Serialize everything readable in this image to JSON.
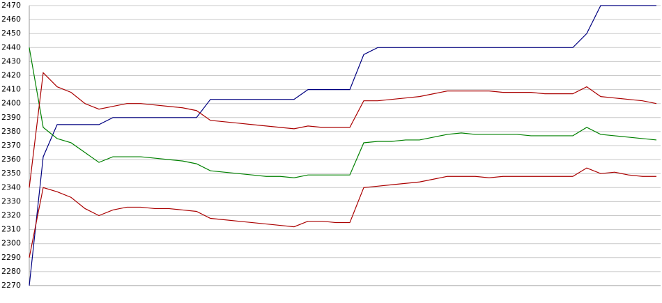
{
  "chart_data": {
    "type": "line",
    "categories": [
      null,
      null,
      null,
      null,
      null,
      null,
      null,
      null,
      null,
      null,
      null,
      null,
      null,
      null,
      null,
      null,
      null,
      null,
      null,
      null,
      null,
      null,
      null,
      null,
      null,
      null,
      null,
      null,
      null,
      null,
      null,
      null,
      null,
      null,
      null,
      null,
      null,
      null,
      null,
      null,
      null,
      null,
      null,
      null,
      null,
      null
    ],
    "series": [
      {
        "color": "#000080",
        "values": [
          2270,
          2362,
          2385,
          2385,
          2385,
          2385,
          2390,
          2390,
          2390,
          2390,
          2390,
          2390,
          2390,
          2403,
          2403,
          2403,
          2403,
          2403,
          2403,
          2403,
          2410,
          2410,
          2410,
          2410,
          2435,
          2440,
          2440,
          2440,
          2440,
          2440,
          2440,
          2440,
          2440,
          2440,
          2440,
          2440,
          2440,
          2440,
          2440,
          2440,
          2450,
          2470,
          2470,
          2470,
          2470,
          2470
        ]
      },
      {
        "color": "#008000",
        "values": [
          2440,
          2383,
          2375,
          2372,
          2365,
          2358,
          2362,
          2362,
          2362,
          2361,
          2360,
          2359,
          2357,
          2352,
          2351,
          2350,
          2349,
          2348,
          2348,
          2347,
          2349,
          2349,
          2349,
          2349,
          2372,
          2373,
          2373,
          2374,
          2374,
          2376,
          2378,
          2379,
          2378,
          2378,
          2378,
          2378,
          2377,
          2377,
          2377,
          2377,
          2383,
          2378,
          2377,
          2376,
          2375,
          2374
        ]
      },
      {
        "color": "#aa0000",
        "values": [
          2340,
          2422,
          2412,
          2408,
          2400,
          2396,
          2398,
          2400,
          2400,
          2399,
          2398,
          2397,
          2395,
          2388,
          2387,
          2386,
          2385,
          2384,
          2383,
          2382,
          2384,
          2383,
          2383,
          2383,
          2402,
          2402,
          2403,
          2404,
          2405,
          2407,
          2409,
          2409,
          2409,
          2409,
          2408,
          2408,
          2408,
          2407,
          2407,
          2407,
          2412,
          2405,
          2404,
          2403,
          2402,
          2400
        ]
      },
      {
        "color": "#aa0000",
        "values": [
          2290,
          2340,
          2337,
          2333,
          2325,
          2320,
          2324,
          2326,
          2326,
          2325,
          2325,
          2324,
          2323,
          2318,
          2317,
          2316,
          2315,
          2314,
          2313,
          2312,
          2316,
          2316,
          2315,
          2315,
          2340,
          2341,
          2342,
          2343,
          2344,
          2346,
          2348,
          2348,
          2348,
          2347,
          2348,
          2348,
          2348,
          2348,
          2348,
          2348,
          2354,
          2350,
          2351,
          2349,
          2348,
          2348
        ]
      }
    ],
    "ylim": [
      2270,
      2470
    ],
    "yticks": [
      2270,
      2280,
      2290,
      2300,
      2310,
      2320,
      2330,
      2340,
      2350,
      2360,
      2370,
      2380,
      2390,
      2400,
      2410,
      2420,
      2430,
      2440,
      2450,
      2460,
      2470
    ],
    "grid": true
  }
}
